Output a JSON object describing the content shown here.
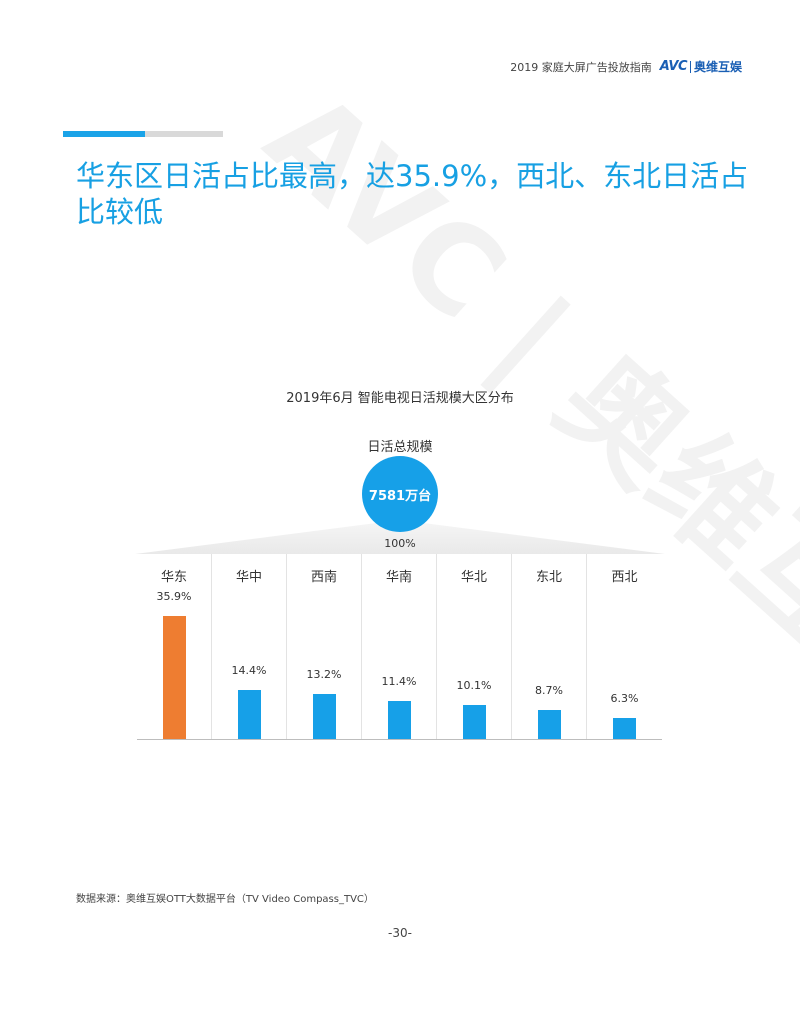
{
  "header": {
    "report_title": "2019 家庭大屏广告投放指南",
    "logo_avc": "AVC",
    "logo_cn": "奥维互娱"
  },
  "title": "华东区日活占比最高，达35.9%，西北、东北日活占比较低",
  "chart": {
    "title": "2019年6月 智能电视日活规模大区分布",
    "total_label": "日活总规模",
    "total_value": "7581万台",
    "total_pct": "100%"
  },
  "chart_data": {
    "type": "bar",
    "title": "2019年6月 智能电视日活规模大区分布",
    "categories": [
      "华东",
      "华中",
      "西南",
      "华南",
      "华北",
      "东北",
      "西北"
    ],
    "values": [
      35.9,
      14.4,
      13.2,
      11.4,
      10.1,
      8.7,
      6.3
    ],
    "value_labels": [
      "35.9%",
      "14.4%",
      "13.2%",
      "11.4%",
      "10.1%",
      "8.7%",
      "6.3%"
    ],
    "unit": "%",
    "highlight_index": 0,
    "colors": {
      "bar": "#16a0e8",
      "highlight": "#ee7d31"
    },
    "grid": false
  },
  "source": "数据来源：奥维互娱OTT大数据平台（TV Video Compass_TVC）",
  "page_number": "-30-",
  "watermark_text": "AVC | 奥维互娱",
  "colors": {
    "accent": "#17a0e3",
    "circle": "#16a0e8"
  }
}
